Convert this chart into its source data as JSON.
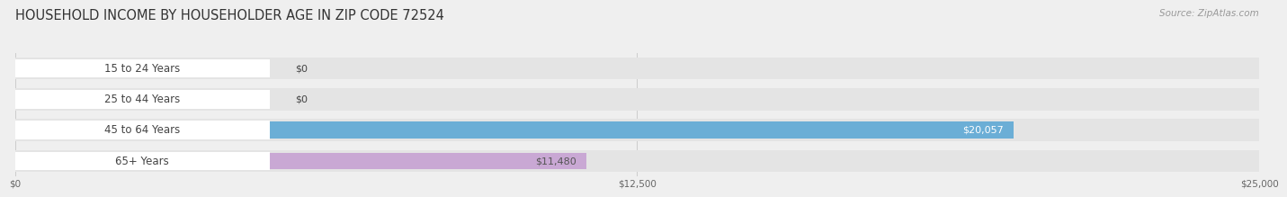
{
  "title": "HOUSEHOLD INCOME BY HOUSEHOLDER AGE IN ZIP CODE 72524",
  "source": "Source: ZipAtlas.com",
  "categories": [
    "15 to 24 Years",
    "25 to 44 Years",
    "45 to 64 Years",
    "65+ Years"
  ],
  "values": [
    0,
    0,
    20057,
    11480
  ],
  "bar_colors": [
    "#f5c89a",
    "#f4a0a0",
    "#6baed6",
    "#c9a8d4"
  ],
  "label_colors": [
    "#555555",
    "#555555",
    "#ffffff",
    "#555555"
  ],
  "value_labels": [
    "$0",
    "$0",
    "$20,057",
    "$11,480"
  ],
  "xlim": [
    0,
    25000
  ],
  "xticks": [
    0,
    12500,
    25000
  ],
  "xtick_labels": [
    "$0",
    "$12,500",
    "$25,000"
  ],
  "background_color": "#efefef",
  "bar_background_color": "#e4e4e4",
  "title_fontsize": 10.5,
  "source_fontsize": 7.5,
  "label_fontsize": 8.5,
  "value_fontsize": 8,
  "tick_fontsize": 7.5
}
